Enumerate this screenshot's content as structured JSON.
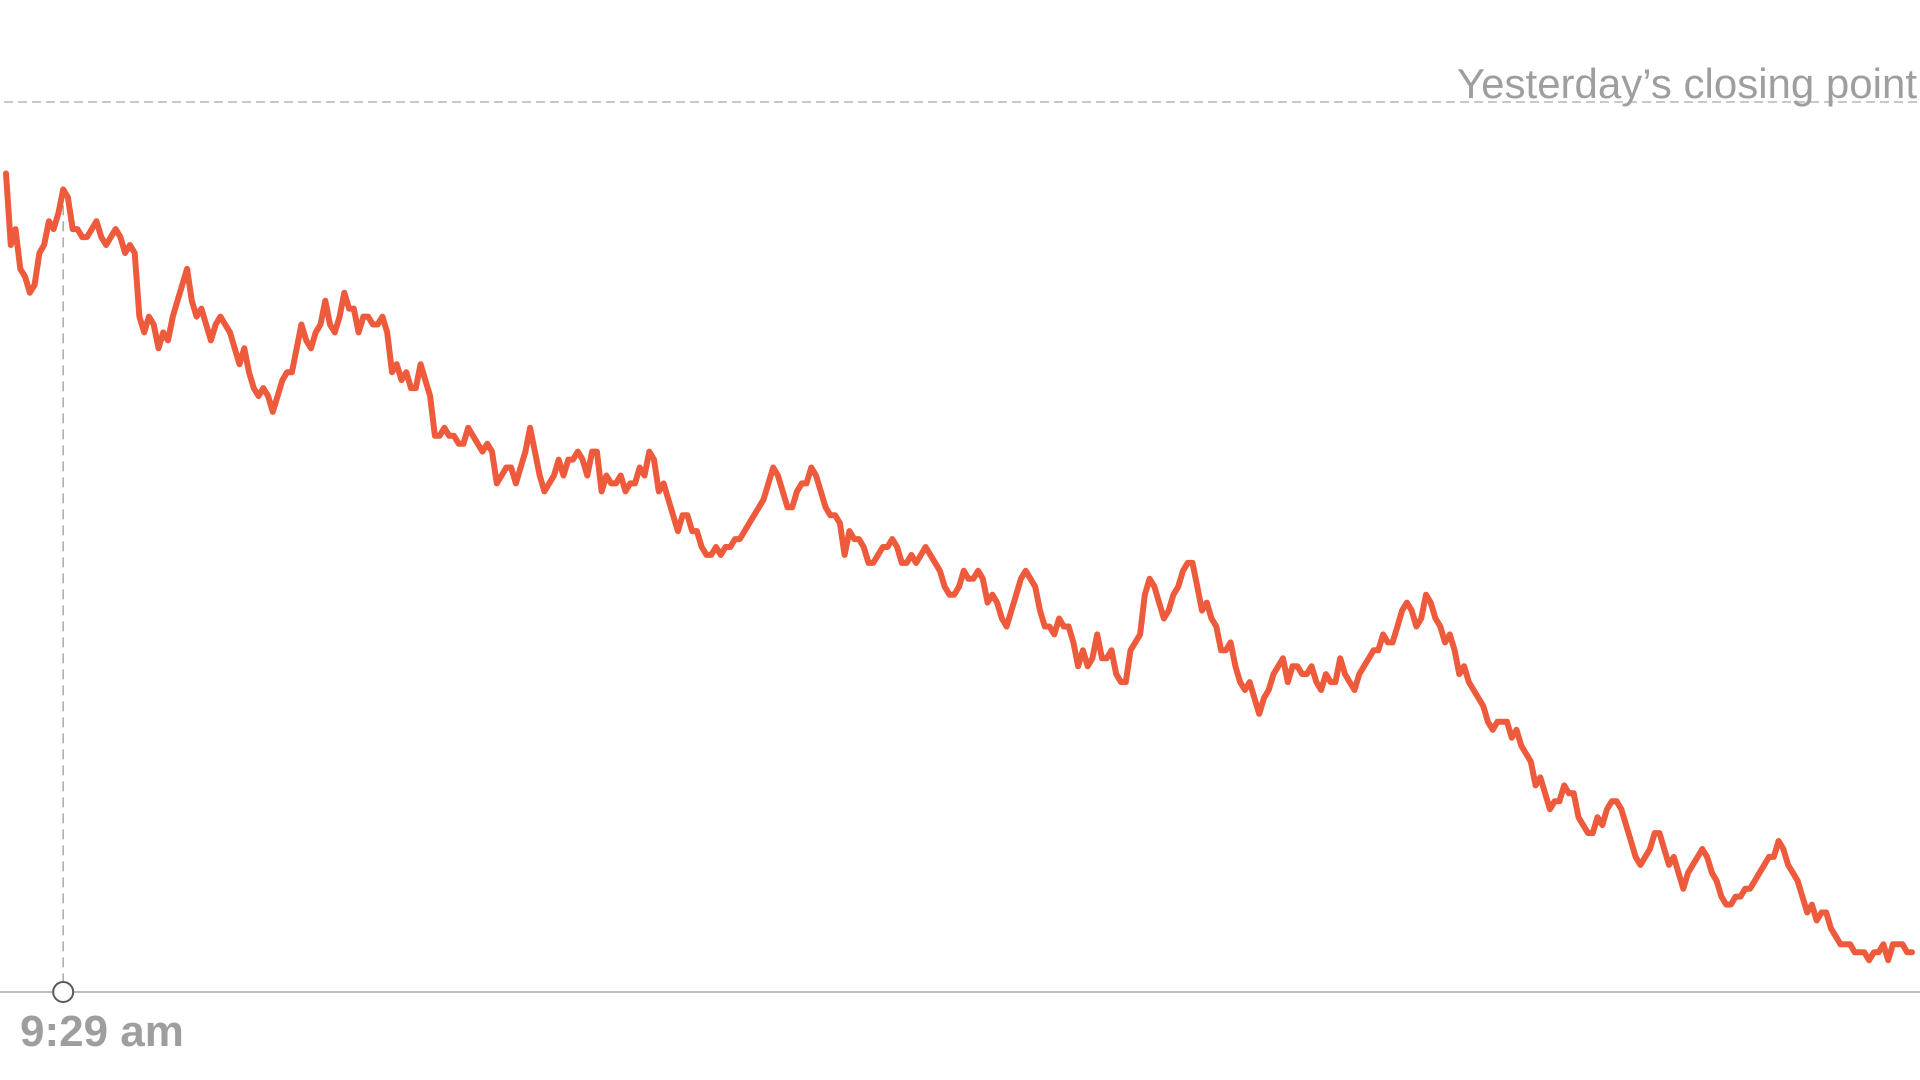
{
  "chart_data": {
    "type": "line",
    "reference_line": {
      "label": "Yesterday’s closing point",
      "value": 0
    },
    "x_marker": {
      "label": "9:29 am",
      "index": 12
    },
    "ylim": [
      -112,
      0
    ],
    "grid": false,
    "colors": {
      "line": "#ee5a3c",
      "reference": "#c8c8c8",
      "baseline": "#bdbdbd",
      "label": "#9e9e9e"
    },
    "series": [
      {
        "values": [
          -9,
          -18,
          -16,
          -21,
          -22,
          -24,
          -23,
          -19,
          -18,
          -15,
          -16,
          -14,
          -11,
          -12,
          -16,
          -16,
          -17,
          -17,
          -16,
          -15,
          -17,
          -18,
          -17,
          -16,
          -17,
          -19,
          -18,
          -19,
          -27,
          -29,
          -27,
          -28,
          -31,
          -29,
          -30,
          -27,
          -25,
          -23,
          -21,
          -25,
          -27,
          -26,
          -28,
          -30,
          -28,
          -27,
          -28,
          -29,
          -31,
          -33,
          -31,
          -34,
          -36,
          -37,
          -36,
          -37,
          -39,
          -37,
          -35,
          -34,
          -34,
          -31,
          -28,
          -30,
          -31,
          -29,
          -28,
          -25,
          -28,
          -29,
          -27,
          -24,
          -26,
          -26,
          -29,
          -27,
          -27,
          -28,
          -28,
          -27,
          -29,
          -34,
          -33,
          -35,
          -34,
          -36,
          -36,
          -33,
          -35,
          -37,
          -42,
          -42,
          -41,
          -42,
          -42,
          -43,
          -43,
          -41,
          -42,
          -43,
          -44,
          -43,
          -44,
          -48,
          -47,
          -46,
          -46,
          -48,
          -46,
          -44,
          -41,
          -44,
          -47,
          -49,
          -48,
          -47,
          -45,
          -47,
          -45,
          -45,
          -44,
          -45,
          -47,
          -44,
          -44,
          -49,
          -47,
          -48,
          -48,
          -47,
          -49,
          -48,
          -48,
          -46,
          -47,
          -44,
          -45,
          -49,
          -48,
          -50,
          -52,
          -54,
          -52,
          -52,
          -54,
          -54,
          -56,
          -57,
          -57,
          -56,
          -57,
          -56,
          -56,
          -55,
          -55,
          -54,
          -53,
          -52,
          -51,
          -50,
          -48,
          -46,
          -47,
          -49,
          -51,
          -51,
          -49,
          -48,
          -48,
          -46,
          -47,
          -49,
          -51,
          -52,
          -52,
          -53,
          -57,
          -54,
          -55,
          -55,
          -56,
          -58,
          -58,
          -57,
          -56,
          -56,
          -55,
          -56,
          -58,
          -58,
          -57,
          -58,
          -57,
          -56,
          -57,
          -58,
          -59,
          -61,
          -62,
          -62,
          -61,
          -59,
          -60,
          -60,
          -59,
          -60,
          -63,
          -62,
          -63,
          -65,
          -66,
          -64,
          -62,
          -60,
          -59,
          -60,
          -61,
          -64,
          -66,
          -66,
          -67,
          -65,
          -66,
          -66,
          -68,
          -71,
          -69,
          -71,
          -70,
          -67,
          -70,
          -70,
          -69,
          -72,
          -73,
          -73,
          -69,
          -68,
          -67,
          -62,
          -60,
          -61,
          -63,
          -65,
          -64,
          -62,
          -61,
          -59,
          -58,
          -58,
          -61,
          -64,
          -63,
          -65,
          -66,
          -69,
          -69,
          -68,
          -71,
          -73,
          -74,
          -73,
          -75,
          -77,
          -75,
          -74,
          -72,
          -71,
          -70,
          -73,
          -71,
          -71,
          -72,
          -72,
          -71,
          -73,
          -74,
          -72,
          -73,
          -73,
          -70,
          -72,
          -73,
          -74,
          -72,
          -71,
          -70,
          -69,
          -69,
          -67,
          -68,
          -68,
          -66,
          -64,
          -63,
          -64,
          -66,
          -65,
          -62,
          -63,
          -65,
          -66,
          -68,
          -67,
          -69,
          -72,
          -71,
          -73,
          -74,
          -75,
          -76,
          -78,
          -79,
          -78,
          -78,
          -78,
          -80,
          -79,
          -81,
          -82,
          -83,
          -86,
          -85,
          -87,
          -89,
          -88,
          -88,
          -86,
          -87,
          -87,
          -90,
          -91,
          -92,
          -92,
          -90,
          -91,
          -89,
          -88,
          -88,
          -89,
          -91,
          -93,
          -95,
          -96,
          -95,
          -94,
          -92,
          -92,
          -94,
          -96,
          -95,
          -97,
          -99,
          -97,
          -96,
          -95,
          -94,
          -95,
          -97,
          -98,
          -100,
          -101,
          -101,
          -100,
          -100,
          -99,
          -99,
          -98,
          -97,
          -96,
          -95,
          -95,
          -93,
          -94,
          -96,
          -97,
          -98,
          -100,
          -102,
          -101,
          -103,
          -102,
          -102,
          -104,
          -105,
          -106,
          -106,
          -106,
          -107,
          -107,
          -107,
          -108,
          -107,
          -107,
          -106,
          -108,
          -106,
          -106,
          -106,
          -107,
          -107
        ]
      }
    ]
  }
}
